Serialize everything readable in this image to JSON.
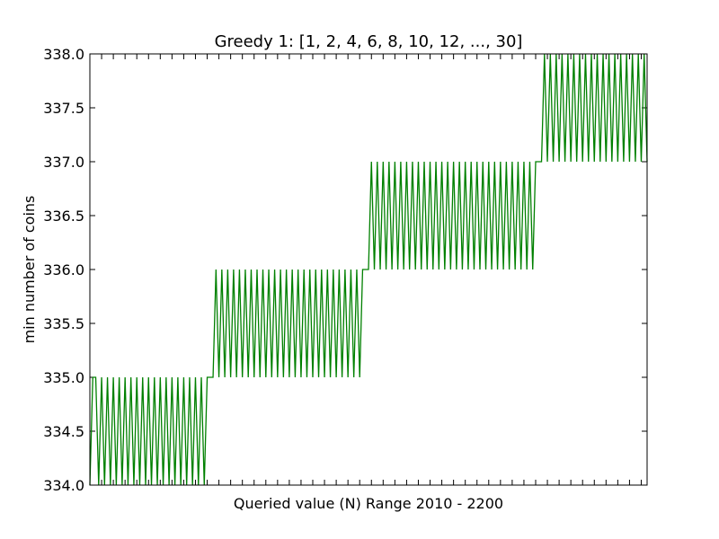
{
  "chart_data": {
    "type": "line",
    "title": "Greedy 1: [1, 2, 4, 6, 8, 10, 12, ..., 30]",
    "xlabel": "Queried value (N) Range 2010 - 2200",
    "ylabel": "min number of coins",
    "x_range": [
      2010,
      2200
    ],
    "ylim": [
      334.0,
      338.0
    ],
    "yticks": [
      334.0,
      334.5,
      335.0,
      335.5,
      336.0,
      336.5,
      337.0,
      337.5,
      338.0
    ],
    "ytick_labels": [
      "334.0",
      "334.5",
      "335.0",
      "335.5",
      "336.0",
      "336.5",
      "337.0",
      "337.5",
      "338.0"
    ],
    "x_tick_labels_shown": false,
    "grid": false,
    "series": [
      {
        "color": "#008000",
        "x": [
          2010,
          2011,
          2012,
          2013,
          2014,
          2015,
          2016,
          2017,
          2018,
          2019,
          2020,
          2021,
          2022,
          2023,
          2024,
          2025,
          2026,
          2027,
          2028,
          2029,
          2030,
          2031,
          2032,
          2033,
          2034,
          2035,
          2036,
          2037,
          2038,
          2039,
          2040,
          2041,
          2042,
          2043,
          2044,
          2045,
          2046,
          2047,
          2048,
          2049,
          2050,
          2051,
          2052,
          2053,
          2054,
          2055,
          2056,
          2057,
          2058,
          2059,
          2060,
          2061,
          2062,
          2063,
          2064,
          2065,
          2066,
          2067,
          2068,
          2069,
          2070,
          2071,
          2072,
          2073,
          2074,
          2075,
          2076,
          2077,
          2078,
          2079,
          2080,
          2081,
          2082,
          2083,
          2084,
          2085,
          2086,
          2087,
          2088,
          2089,
          2090,
          2091,
          2092,
          2093,
          2094,
          2095,
          2096,
          2097,
          2098,
          2099,
          2100,
          2101,
          2102,
          2103,
          2104,
          2105,
          2106,
          2107,
          2108,
          2109,
          2110,
          2111,
          2112,
          2113,
          2114,
          2115,
          2116,
          2117,
          2118,
          2119,
          2120,
          2121,
          2122,
          2123,
          2124,
          2125,
          2126,
          2127,
          2128,
          2129,
          2130,
          2131,
          2132,
          2133,
          2134,
          2135,
          2136,
          2137,
          2138,
          2139,
          2140,
          2141,
          2142,
          2143,
          2144,
          2145,
          2146,
          2147,
          2148,
          2149,
          2150,
          2151,
          2152,
          2153,
          2154,
          2155,
          2156,
          2157,
          2158,
          2159,
          2160,
          2161,
          2162,
          2163,
          2164,
          2165,
          2166,
          2167,
          2168,
          2169,
          2170,
          2171,
          2172,
          2173,
          2174,
          2175,
          2176,
          2177,
          2178,
          2179,
          2180,
          2181,
          2182,
          2183,
          2184,
          2185,
          2186,
          2187,
          2188,
          2189,
          2190,
          2191,
          2192,
          2193,
          2194,
          2195,
          2196,
          2197,
          2198,
          2199,
          2200
        ],
        "y": [
          334,
          335,
          335,
          334,
          335,
          334,
          335,
          334,
          335,
          334,
          335,
          334,
          335,
          334,
          335,
          334,
          335,
          334,
          335,
          334,
          335,
          334,
          335,
          334,
          335,
          334,
          335,
          334,
          335,
          334,
          335,
          334,
          335,
          334,
          335,
          334,
          335,
          334,
          335,
          334,
          335,
          335,
          335,
          336,
          335,
          336,
          335,
          336,
          335,
          336,
          335,
          336,
          335,
          336,
          335,
          336,
          335,
          336,
          335,
          336,
          335,
          336,
          335,
          336,
          335,
          336,
          335,
          336,
          335,
          336,
          335,
          336,
          335,
          336,
          335,
          336,
          335,
          336,
          335,
          336,
          335,
          336,
          335,
          336,
          335,
          336,
          335,
          336,
          335,
          336,
          335,
          336,
          335,
          336,
          336,
          336,
          337,
          336,
          337,
          336,
          337,
          336,
          337,
          336,
          337,
          336,
          337,
          336,
          337,
          336,
          337,
          336,
          337,
          336,
          337,
          336,
          337,
          336,
          337,
          336,
          337,
          336,
          337,
          336,
          337,
          336,
          337,
          336,
          337,
          336,
          337,
          336,
          337,
          336,
          337,
          336,
          337,
          336,
          337,
          336,
          337,
          336,
          337,
          336,
          337,
          336,
          337,
          336,
          337,
          336,
          337,
          336,
          337,
          337,
          337,
          338,
          337,
          338,
          337,
          338,
          337,
          338,
          337,
          338,
          337,
          338,
          337,
          338,
          337,
          338,
          337,
          338,
          337,
          338,
          337,
          338,
          337,
          338,
          337,
          338,
          337,
          338,
          337,
          338,
          337,
          338,
          337,
          338,
          337,
          338,
          337
        ]
      }
    ]
  }
}
